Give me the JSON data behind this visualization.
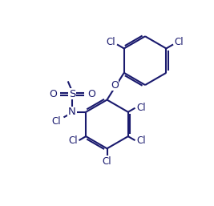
{
  "bg_color": "#ffffff",
  "line_color": "#1a1a6e",
  "line_width": 1.5,
  "font_size": 8.5,
  "figsize": [
    2.67,
    2.57
  ],
  "dpi": 100,
  "xlim": [
    0,
    10
  ],
  "ylim": [
    0,
    9.6
  ]
}
